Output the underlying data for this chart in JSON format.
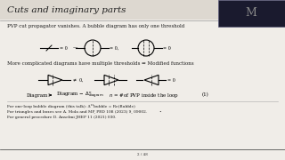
{
  "title": "Cuts and imaginary parts",
  "title_color": "#222222",
  "bg_color": "#f0ede8",
  "slide_bg": "#c8c4bc",
  "header_bg": "#ddd8d0",
  "text_lines": [
    "PVP cut propagator vanishes. A bubble diagram has only one threshold",
    "More complicated diagrams have multiple thresholds ⇒ Modified functions"
  ],
  "ref_lines": [
    "For one-loop bubble diagram (this talk): Δ¹²bubble = Re(Bubble)",
    "For triangles and boxes see A. Mola and MP, PRD 108 (2023) 9, 09002.          •",
    "For general procedure D. Anselmi JHEP 11 (2021) 030."
  ],
  "footer": "2 / 48"
}
